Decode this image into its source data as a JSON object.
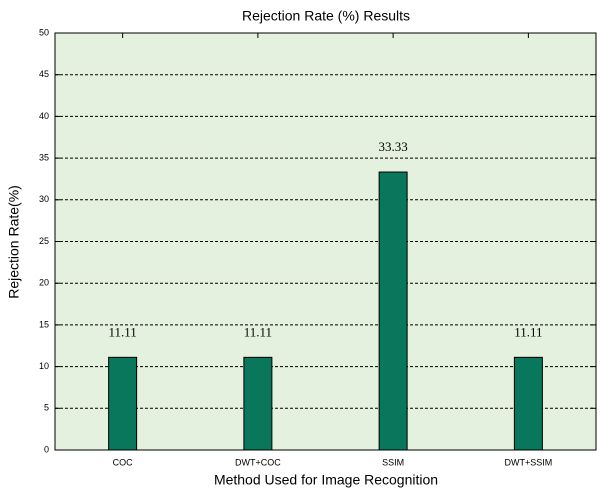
{
  "chart_data": {
    "type": "bar",
    "title": "Rejection Rate (%) Results",
    "x_label": "Method Used for Image Recognition",
    "y_label": "Rejection Rate(%)",
    "categories": [
      "COC",
      "DWT+COC",
      "SSIM",
      "DWT+SSIM"
    ],
    "values": [
      11.11,
      11.11,
      33.33,
      11.11
    ],
    "color": "#08775b",
    "background": "#e5f1df",
    "ylim": [
      0,
      50
    ],
    "yticks": [
      0,
      5,
      10,
      15,
      20,
      25,
      30,
      35,
      40,
      45,
      50
    ],
    "grid": true
  }
}
